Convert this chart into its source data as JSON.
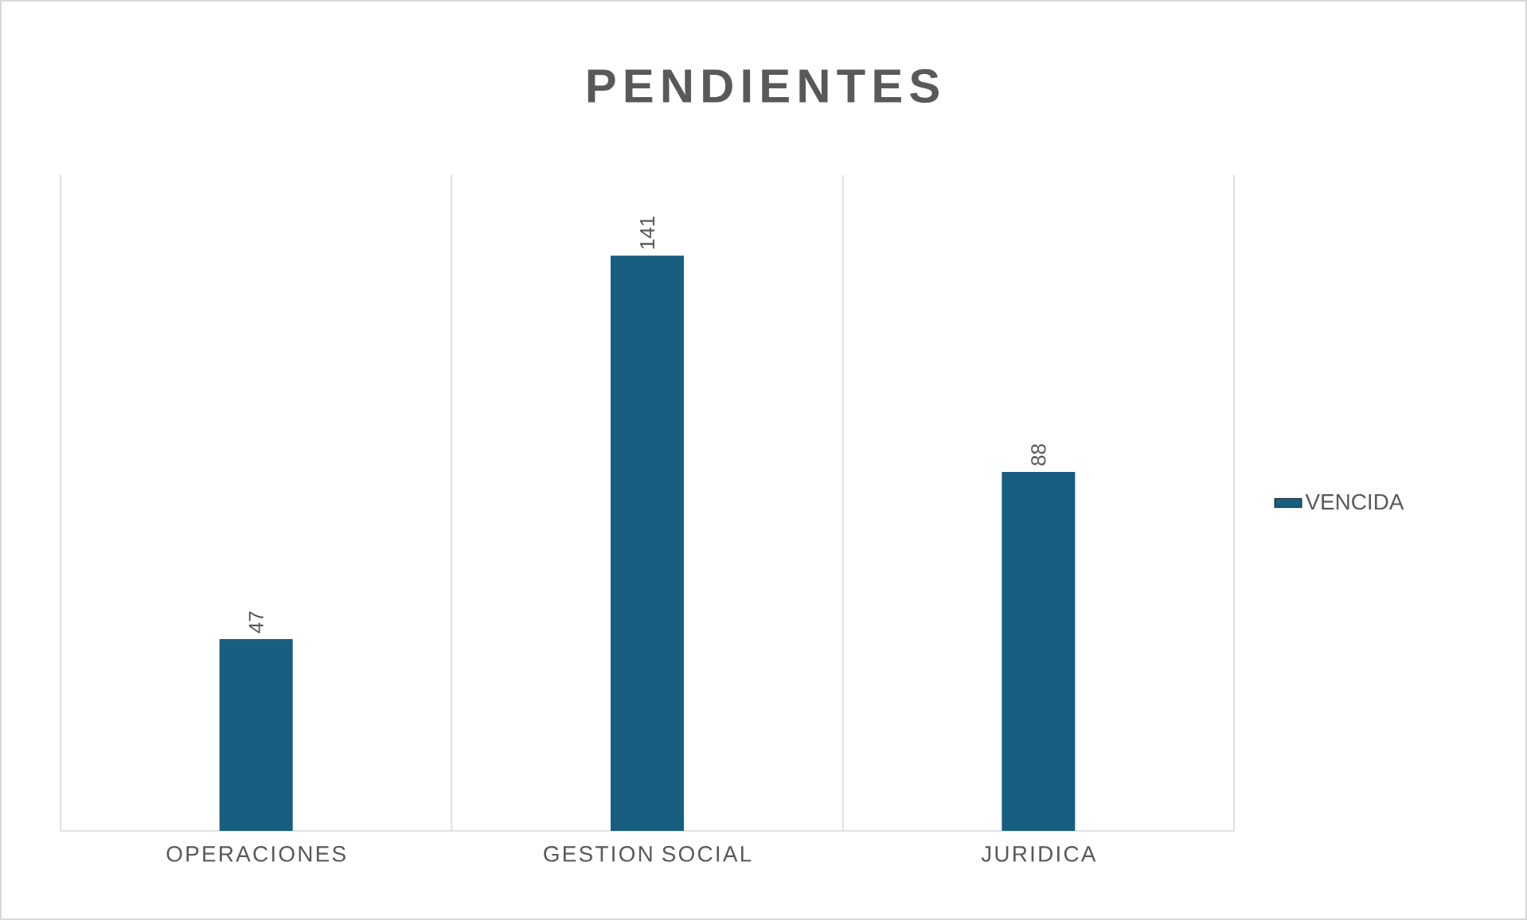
{
  "chart_data": {
    "type": "bar",
    "title": "PENDIENTES",
    "categories": [
      "OPERACIONES",
      "GESTION SOCIAL",
      "JURIDICA"
    ],
    "series": [
      {
        "name": "VENCIDA",
        "color": "#175e80",
        "values": [
          47,
          141,
          88
        ]
      }
    ],
    "data_labels": true,
    "grid": "x",
    "legend": "right"
  }
}
